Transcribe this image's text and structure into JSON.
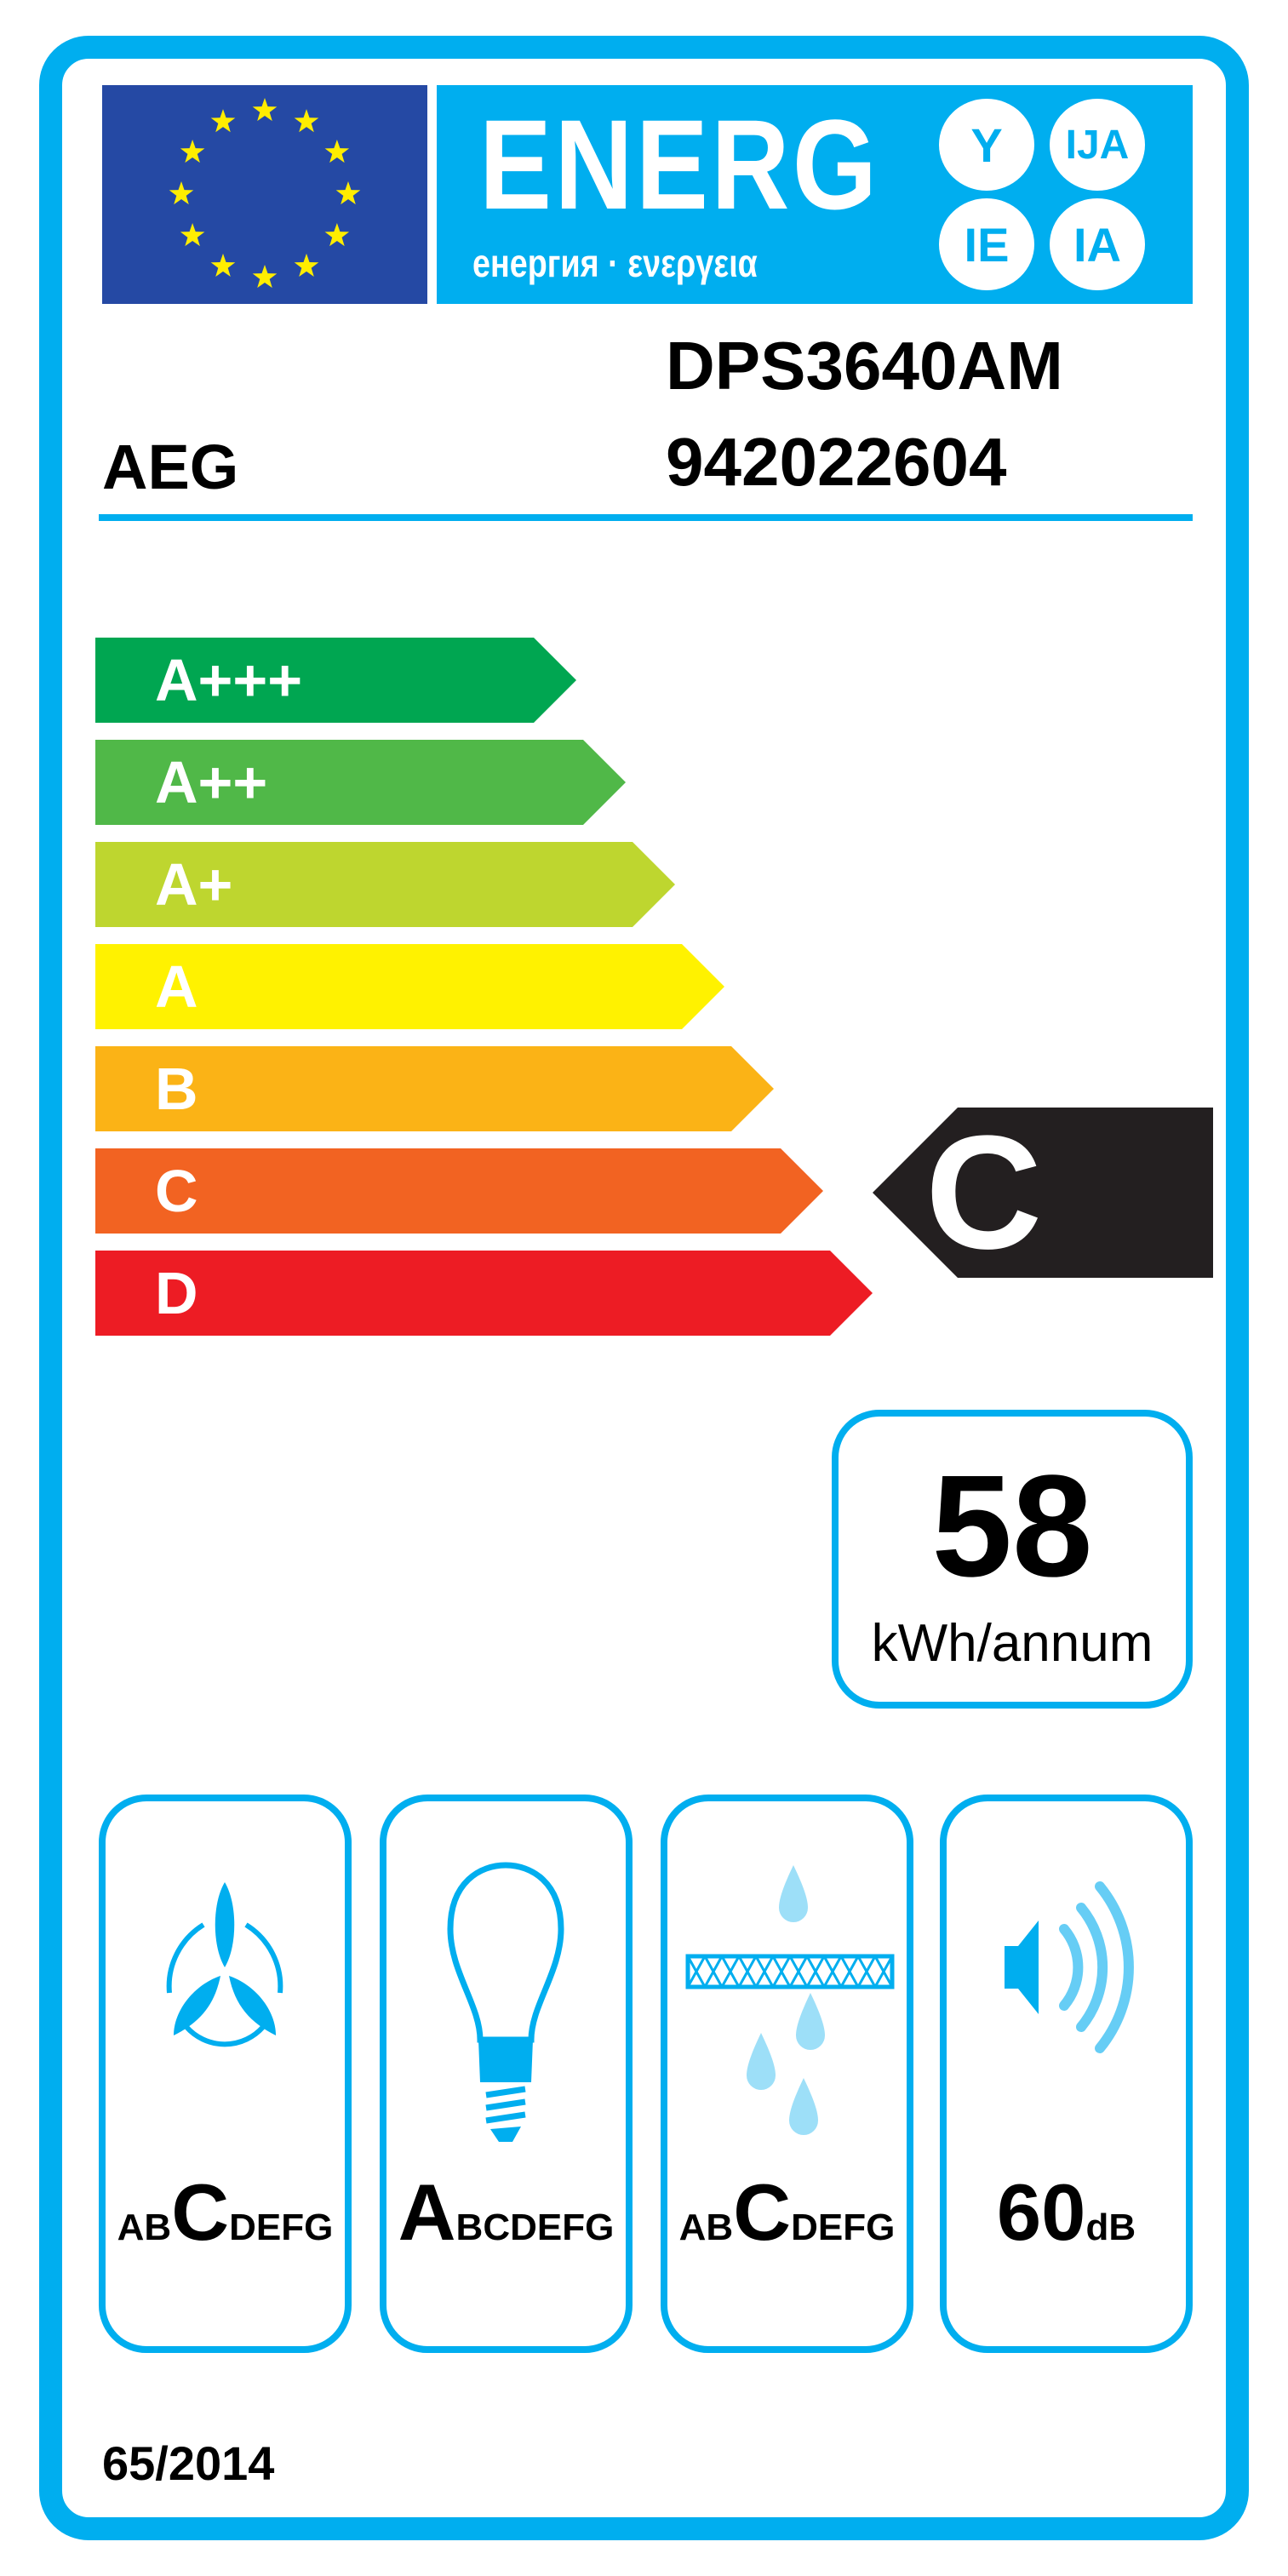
{
  "header": {
    "energy_word": "ENERG",
    "energy_sub": "енергия · ενεργεια",
    "suffixes": [
      "Y",
      "IJA",
      "IE",
      "IA"
    ]
  },
  "supplier": "AEG",
  "model": "DPS3640AM",
  "model_id": "942022604",
  "scale": {
    "classes": [
      "A+++",
      "A++",
      "A+",
      "A",
      "B",
      "C",
      "D"
    ],
    "colors": [
      "#00a651",
      "#50b848",
      "#bed62f",
      "#fff200",
      "#fbb316",
      "#f26322",
      "#ed1c24"
    ]
  },
  "rating": {
    "class": "C",
    "color": "#231f20"
  },
  "consumption": {
    "value": "58",
    "unit": "kWh/annum"
  },
  "pictograms": [
    {
      "icon": "fan-icon",
      "pre": "AB",
      "grade": "C",
      "post": "DEFG"
    },
    {
      "icon": "light-bulb-icon",
      "pre": "",
      "grade": "A",
      "post": "BCDEFG"
    },
    {
      "icon": "grease-filter-icon",
      "pre": "AB",
      "grade": "C",
      "post": "DEFG"
    },
    {
      "icon": "speaker-icon",
      "value": "60",
      "unit": "dB"
    }
  ],
  "regulation": "65/2014",
  "accent": "#00aeef"
}
